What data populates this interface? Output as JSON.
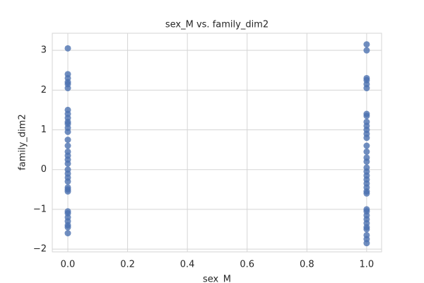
{
  "chart_data": {
    "type": "scatter",
    "title": "sex_M vs. family_dim2",
    "xlabel": "sex_M",
    "ylabel": "family_dim2",
    "xlim": [
      -0.052,
      1.05
    ],
    "ylim": [
      -2.07,
      3.43
    ],
    "xticks": [
      {
        "value": 0,
        "label": "0.0"
      },
      {
        "value": 0.2,
        "label": "0.2"
      },
      {
        "value": 0.4,
        "label": "0.4"
      },
      {
        "value": 0.6,
        "label": "0.6"
      },
      {
        "value": 0.8,
        "label": "0.8"
      },
      {
        "value": 1,
        "label": "1.0"
      }
    ],
    "yticks": [
      {
        "value": -2,
        "label": "−2"
      },
      {
        "value": -1,
        "label": "−1"
      },
      0,
      1,
      2,
      3
    ],
    "grid": true,
    "series": [
      {
        "color": "#4c72b0",
        "x": [
          0,
          0,
          0,
          0,
          0,
          0,
          0,
          0,
          0,
          0,
          0,
          0,
          0,
          0,
          0,
          0,
          0,
          0,
          0,
          0,
          0,
          0,
          0,
          0,
          0,
          0,
          0,
          0,
          0,
          0,
          0,
          0,
          0,
          1,
          1,
          1,
          1,
          1,
          1,
          1,
          1,
          1,
          1,
          1,
          1,
          1,
          1,
          1,
          1,
          1,
          1,
          1,
          1,
          1,
          1,
          1,
          1,
          1,
          1,
          1,
          1,
          1,
          1,
          1,
          1,
          1,
          1,
          1
        ],
        "y": [
          3.05,
          2.4,
          2.3,
          2.2,
          2.15,
          2.05,
          1.5,
          1.4,
          1.3,
          1.2,
          1.15,
          1.05,
          0.95,
          0.75,
          0.6,
          0.45,
          0.35,
          0.25,
          0.15,
          0.0,
          -0.1,
          -0.2,
          -0.3,
          -0.45,
          -0.5,
          -0.55,
          -1.05,
          -1.1,
          -1.2,
          -1.3,
          -1.4,
          -1.45,
          -1.6,
          3.15,
          3.0,
          2.3,
          2.25,
          2.15,
          2.05,
          1.4,
          1.35,
          1.2,
          1.1,
          1.0,
          0.9,
          0.8,
          0.6,
          0.45,
          0.3,
          0.2,
          0.05,
          -0.05,
          -0.15,
          -0.25,
          -0.35,
          -0.45,
          -0.55,
          -0.6,
          -1.0,
          -1.05,
          -1.15,
          -1.25,
          -1.35,
          -1.45,
          -1.5,
          -1.65,
          -1.75,
          -1.85
        ]
      }
    ]
  }
}
